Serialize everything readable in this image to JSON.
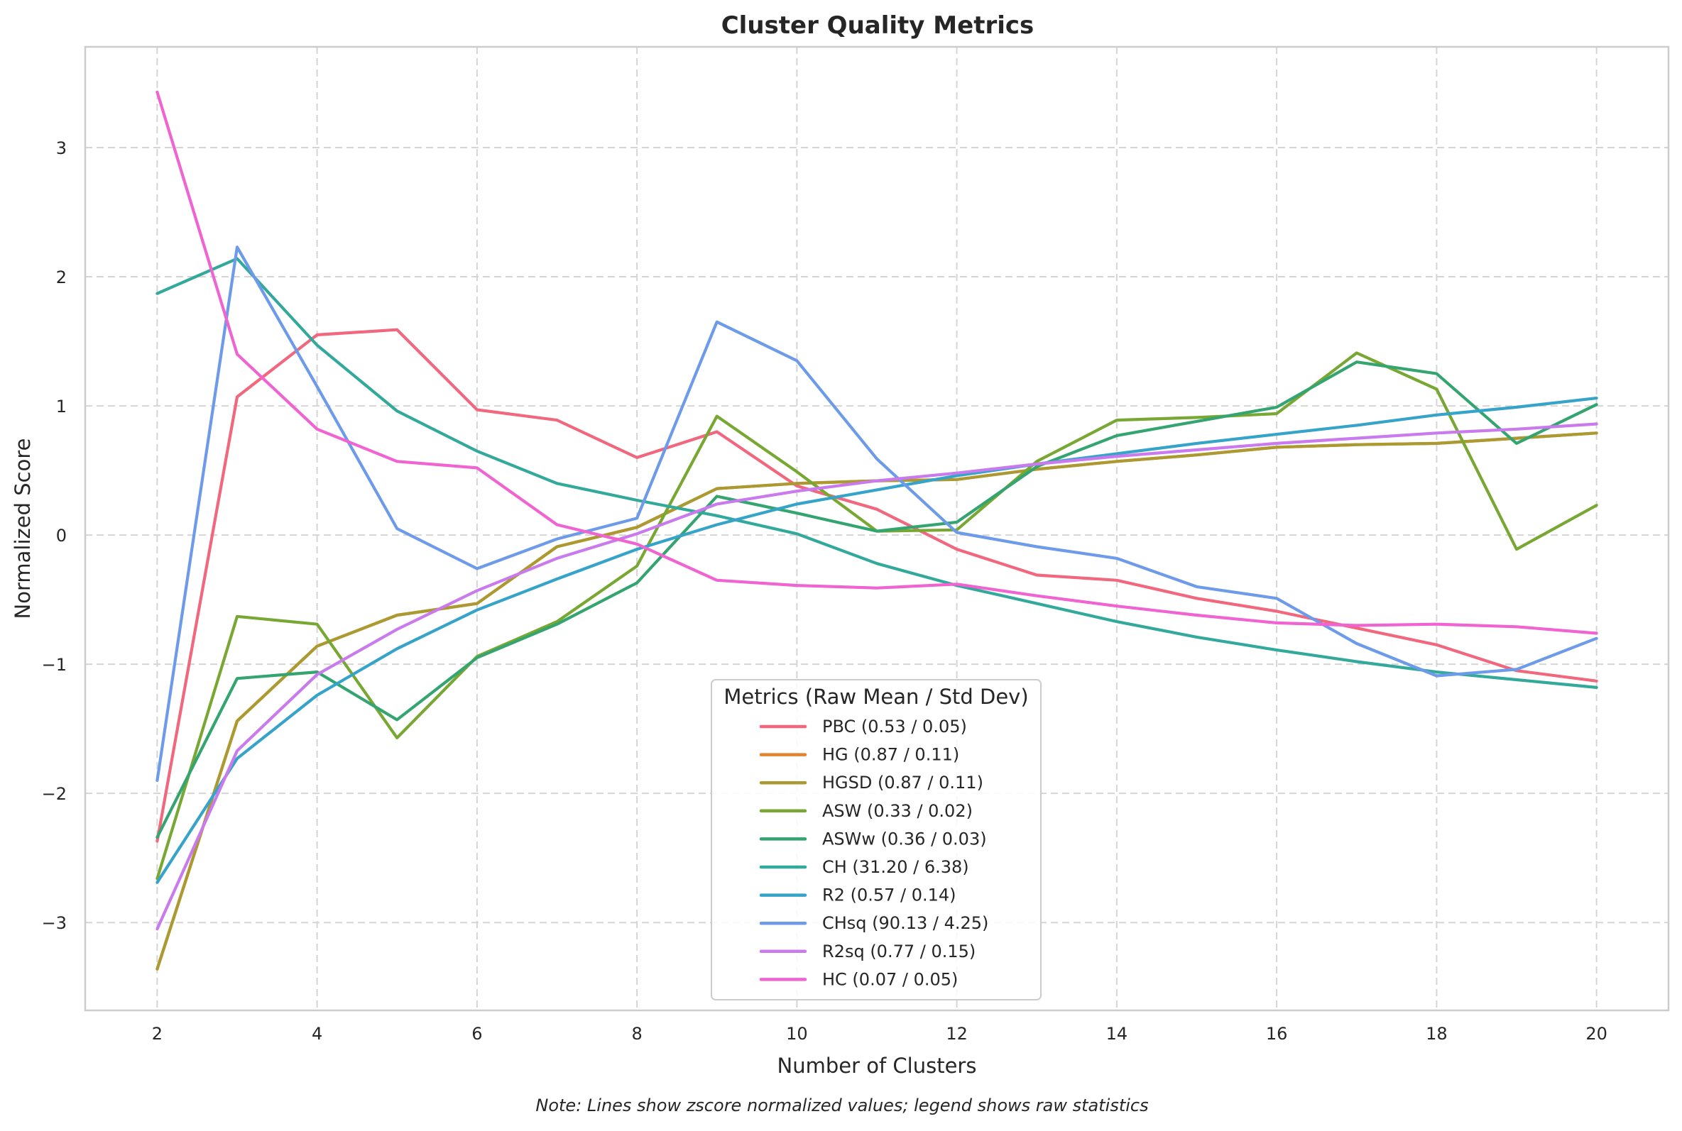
{
  "chart_data": {
    "type": "line",
    "title": "Cluster Quality Metrics",
    "xlabel": "Number of Clusters",
    "ylabel": "Normalized Score",
    "note": "Note: Lines show zscore normalized values; legend shows raw statistics",
    "legend_title": "Metrics (Raw Mean / Std Dev)",
    "legend_position": "bottom-center",
    "grid": true,
    "xlim": [
      1.1,
      20.9
    ],
    "ylim": [
      -3.68,
      3.78
    ],
    "xticks": [
      2,
      4,
      6,
      8,
      10,
      12,
      14,
      16,
      18,
      20
    ],
    "yticks": [
      -3,
      -2,
      -1,
      0,
      1,
      2,
      3
    ],
    "ytick_labels": [
      "−3",
      "−2",
      "−1",
      "0",
      "1",
      "2",
      "3"
    ],
    "x": [
      2,
      3,
      4,
      5,
      6,
      7,
      8,
      9,
      10,
      11,
      12,
      13,
      14,
      15,
      16,
      17,
      18,
      19,
      20
    ],
    "series": [
      {
        "name": "PBC (0.53 / 0.05)",
        "color": "#f0677e",
        "values": [
          -2.37,
          1.07,
          1.55,
          1.59,
          0.97,
          0.89,
          0.6,
          0.8,
          0.38,
          0.2,
          -0.11,
          -0.31,
          -0.35,
          -0.49,
          -0.59,
          -0.72,
          -0.85,
          -1.05,
          -1.13
        ]
      },
      {
        "name": "HG (0.87 / 0.11)",
        "color": "#e0852f",
        "values": [
          -3.36,
          -1.44,
          -0.86,
          -0.62,
          -0.53,
          -0.09,
          0.06,
          0.36,
          0.4,
          0.42,
          0.43,
          0.51,
          0.57,
          0.62,
          0.68,
          0.7,
          0.71,
          0.75,
          0.79
        ]
      },
      {
        "name": "HGSD (0.87 / 0.11)",
        "color": "#ab9a31",
        "values": [
          -3.36,
          -1.44,
          -0.86,
          -0.62,
          -0.53,
          -0.09,
          0.06,
          0.36,
          0.4,
          0.42,
          0.43,
          0.51,
          0.57,
          0.62,
          0.68,
          0.7,
          0.71,
          0.75,
          0.79
        ]
      },
      {
        "name": "ASW (0.33 / 0.02)",
        "color": "#78a833",
        "values": [
          -2.66,
          -0.63,
          -0.69,
          -1.57,
          -0.94,
          -0.67,
          -0.24,
          0.92,
          0.49,
          0.03,
          0.04,
          0.57,
          0.89,
          0.91,
          0.94,
          1.41,
          1.13,
          -0.11,
          0.23
        ]
      },
      {
        "name": "ASWw (0.36 / 0.03)",
        "color": "#34a470",
        "values": [
          -2.34,
          -1.11,
          -1.06,
          -1.43,
          -0.95,
          -0.69,
          -0.37,
          0.3,
          0.17,
          0.03,
          0.1,
          0.53,
          0.77,
          0.88,
          0.99,
          1.34,
          1.25,
          0.71,
          1.01
        ]
      },
      {
        "name": "CH (31.20 / 6.38)",
        "color": "#33a99b",
        "values": [
          1.87,
          2.14,
          1.47,
          0.96,
          0.65,
          0.4,
          0.27,
          0.15,
          0.01,
          -0.22,
          -0.39,
          -0.53,
          -0.67,
          -0.79,
          -0.89,
          -0.98,
          -1.06,
          -1.12,
          -1.18
        ]
      },
      {
        "name": "R2 (0.57 / 0.14)",
        "color": "#36a3c8",
        "values": [
          -2.69,
          -1.73,
          -1.24,
          -0.88,
          -0.58,
          -0.34,
          -0.11,
          0.08,
          0.24,
          0.35,
          0.46,
          0.55,
          0.63,
          0.71,
          0.78,
          0.85,
          0.93,
          0.99,
          1.06
        ]
      },
      {
        "name": "CHsq (90.13 / 4.25)",
        "color": "#6d9bea",
        "values": [
          -1.9,
          2.23,
          1.15,
          0.05,
          -0.26,
          -0.03,
          0.13,
          1.65,
          1.35,
          0.59,
          0.02,
          -0.09,
          -0.18,
          -0.4,
          -0.49,
          -0.84,
          -1.09,
          -1.04,
          -0.8
        ]
      },
      {
        "name": "R2sq (0.77 / 0.15)",
        "color": "#c97aed",
        "values": [
          -3.05,
          -1.67,
          -1.08,
          -0.73,
          -0.43,
          -0.18,
          0.01,
          0.24,
          0.34,
          0.42,
          0.48,
          0.55,
          0.61,
          0.66,
          0.71,
          0.75,
          0.79,
          0.82,
          0.86
        ]
      },
      {
        "name": "HC (0.07 / 0.05)",
        "color": "#f064d1",
        "values": [
          3.43,
          1.4,
          0.82,
          0.57,
          0.52,
          0.08,
          -0.07,
          -0.35,
          -0.39,
          -0.41,
          -0.38,
          -0.47,
          -0.55,
          -0.62,
          -0.68,
          -0.7,
          -0.69,
          -0.71,
          -0.76
        ]
      }
    ]
  }
}
